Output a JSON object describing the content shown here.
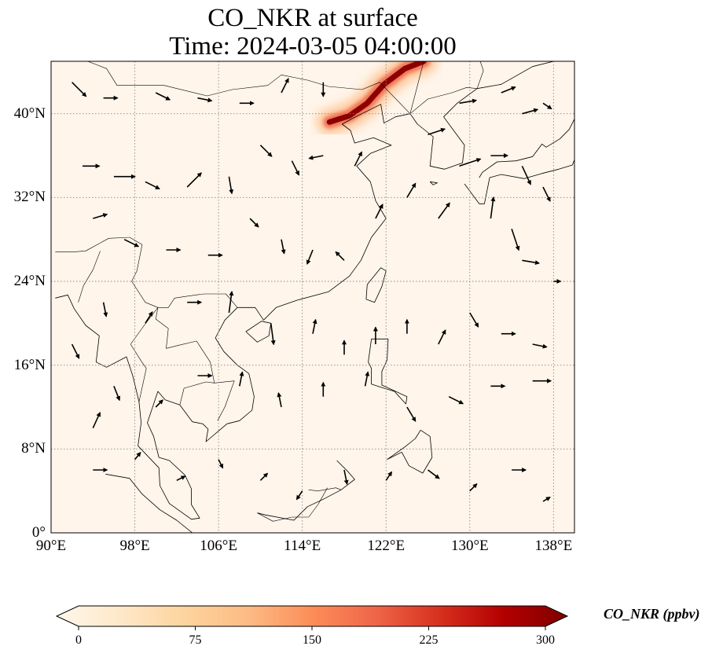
{
  "title": {
    "line1": "CO_NKR at surface",
    "line2": "Time: 2024-03-05 04:00:00"
  },
  "map": {
    "extent": {
      "lon": [
        90,
        140
      ],
      "lat": [
        0,
        45
      ]
    },
    "background_color": "#fff5ea",
    "gridlines": "dotted",
    "x_ticks": [
      "90°E",
      "98°E",
      "106°E",
      "114°E",
      "122°E",
      "130°E",
      "138°E"
    ],
    "y_ticks": [
      "0°",
      "8°N",
      "16°N",
      "24°N",
      "32°N",
      "40°N"
    ],
    "plume": {
      "description": "high CO concentration band over north-east China / Bohai region",
      "points": [
        [
          116.6,
          39.2
        ],
        [
          118.5,
          39.8
        ],
        [
          120.2,
          41.0
        ],
        [
          121.8,
          42.8
        ],
        [
          123.8,
          44.3
        ],
        [
          125.6,
          45.0
        ]
      ],
      "peak_value": 300
    },
    "wind_vectors": [
      [
        92,
        43,
        1,
        -1
      ],
      [
        95,
        41.5,
        1,
        0
      ],
      [
        100,
        42,
        1,
        -0.5
      ],
      [
        104,
        41.5,
        1,
        -0.2
      ],
      [
        108,
        41,
        1,
        0
      ],
      [
        112,
        42,
        0.5,
        1
      ],
      [
        116,
        43,
        0,
        -1
      ],
      [
        93,
        35,
        1.2,
        0
      ],
      [
        96,
        34,
        1.5,
        0
      ],
      [
        99,
        33.5,
        1,
        -0.5
      ],
      [
        103,
        33,
        1,
        1
      ],
      [
        107,
        34,
        0.2,
        -1.2
      ],
      [
        110,
        37,
        0.8,
        -0.8
      ],
      [
        113,
        35.5,
        0.5,
        -1
      ],
      [
        116,
        36,
        -1,
        -0.2
      ],
      [
        119,
        35,
        0.5,
        1
      ],
      [
        94,
        30,
        1,
        0.3
      ],
      [
        97,
        28,
        1,
        -0.5
      ],
      [
        101,
        27,
        1,
        0
      ],
      [
        105,
        26.5,
        1,
        0
      ],
      [
        109,
        30,
        0.6,
        -0.6
      ],
      [
        112,
        28,
        0.2,
        -1
      ],
      [
        115,
        27,
        -0.4,
        -1
      ],
      [
        118,
        26,
        -0.6,
        0.6
      ],
      [
        121,
        30,
        0.5,
        1
      ],
      [
        124,
        32,
        0.6,
        1
      ],
      [
        127,
        30,
        0.8,
        1.1
      ],
      [
        129,
        35,
        1.5,
        0.5
      ],
      [
        132,
        36,
        1.2,
        0
      ],
      [
        135,
        35,
        0.6,
        -1.3
      ],
      [
        137,
        33,
        0.5,
        -1
      ],
      [
        132,
        30,
        0.2,
        1.5
      ],
      [
        134,
        29,
        0.5,
        -1.5
      ],
      [
        135,
        26,
        1.2,
        -0.2
      ],
      [
        138,
        24,
        0.5,
        0
      ],
      [
        95,
        22,
        0.2,
        -1
      ],
      [
        99,
        20,
        0.5,
        0.8
      ],
      [
        103,
        22,
        1,
        0
      ],
      [
        107,
        21,
        0.2,
        1.5
      ],
      [
        111,
        20,
        0.2,
        -1.5
      ],
      [
        115,
        19,
        0.2,
        1
      ],
      [
        118,
        17,
        0,
        1
      ],
      [
        121,
        18,
        0,
        1.2
      ],
      [
        124,
        19,
        0,
        1
      ],
      [
        127,
        18,
        0.5,
        1
      ],
      [
        130,
        21,
        0.6,
        -1
      ],
      [
        133,
        19,
        1,
        0
      ],
      [
        136,
        18,
        1,
        -0.2
      ],
      [
        96,
        14,
        0.4,
        -1
      ],
      [
        100,
        12,
        0.5,
        0.5
      ],
      [
        104,
        15,
        1,
        0
      ],
      [
        108,
        14,
        0.2,
        1
      ],
      [
        112,
        12,
        -0.2,
        1
      ],
      [
        116,
        13,
        0,
        1
      ],
      [
        120,
        14,
        0.2,
        1
      ],
      [
        124,
        12,
        0.6,
        -1
      ],
      [
        128,
        13,
        1,
        -0.5
      ],
      [
        132,
        14,
        1,
        0
      ],
      [
        136,
        14.5,
        1.3,
        0
      ],
      [
        94,
        6,
        1,
        0
      ],
      [
        98,
        7,
        0.4,
        0.5
      ],
      [
        102,
        5,
        0.6,
        0.3
      ],
      [
        106,
        7,
        0.3,
        -0.6
      ],
      [
        110,
        5,
        0.5,
        0.5
      ],
      [
        114,
        4,
        -0.4,
        -0.6
      ],
      [
        118,
        6,
        0.2,
        -1
      ],
      [
        122,
        5,
        0.4,
        0.6
      ],
      [
        126,
        6,
        0.8,
        -0.6
      ],
      [
        130,
        4,
        0.5,
        0.5
      ],
      [
        134,
        6,
        1,
        0
      ],
      [
        137,
        3,
        0.5,
        0.3
      ],
      [
        92,
        18,
        0.5,
        -1
      ],
      [
        94,
        10,
        0.5,
        1.1
      ],
      [
        135,
        40,
        1.1,
        0.3
      ],
      [
        126,
        38,
        1.2,
        0.4
      ],
      [
        129,
        41,
        1.2,
        0.2
      ],
      [
        133,
        42,
        1,
        0.4
      ],
      [
        137,
        41,
        0.6,
        -0.4
      ]
    ],
    "coastlines": [
      [
        [
          107.8,
          21.5
        ],
        [
          109.5,
          21.5
        ],
        [
          110.3,
          20.3
        ],
        [
          111.5,
          21.5
        ],
        [
          113.5,
          22.2
        ],
        [
          116.5,
          23
        ],
        [
          118.5,
          24.5
        ],
        [
          119.6,
          26
        ],
        [
          120.6,
          28.2
        ],
        [
          122,
          30
        ],
        [
          121,
          31.7
        ],
        [
          120.5,
          33.5
        ],
        [
          119.2,
          35
        ],
        [
          120.5,
          36.2
        ],
        [
          122.5,
          37
        ],
        [
          120.8,
          37.7
        ],
        [
          119,
          37.2
        ],
        [
          118.6,
          38.4
        ],
        [
          117.8,
          39
        ],
        [
          118.9,
          39.6
        ],
        [
          121.5,
          40.9
        ],
        [
          121.8,
          39.1
        ],
        [
          122.9,
          39.7
        ],
        [
          124.3,
          40
        ]
      ],
      [
        [
          124.3,
          40
        ],
        [
          125,
          39
        ],
        [
          126.5,
          37.8
        ],
        [
          126.2,
          35
        ],
        [
          127.6,
          34.7
        ],
        [
          129.3,
          35.3
        ],
        [
          129.5,
          37
        ],
        [
          128.3,
          38.6
        ],
        [
          127.5,
          39.7
        ],
        [
          128.8,
          41
        ],
        [
          130.7,
          42.4
        ]
      ],
      [
        [
          130.7,
          42.4
        ],
        [
          133,
          42.8
        ],
        [
          136,
          44.5
        ],
        [
          138,
          45
        ]
      ],
      [
        [
          107.8,
          21.5
        ],
        [
          106.6,
          20.3
        ],
        [
          105.7,
          18.6
        ],
        [
          106.5,
          17.3
        ],
        [
          107.8,
          16
        ],
        [
          108.9,
          15.2
        ],
        [
          109.4,
          13
        ],
        [
          109.2,
          11.7
        ],
        [
          108,
          10.7
        ],
        [
          106.8,
          10.4
        ],
        [
          104.8,
          8.7
        ],
        [
          105,
          9.9
        ],
        [
          104.5,
          10.4
        ],
        [
          103.5,
          10.6
        ],
        [
          102.3,
          12.2
        ],
        [
          100.9,
          12.7
        ],
        [
          100.2,
          13.5
        ],
        [
          99.2,
          10.5
        ],
        [
          99.8,
          9.2
        ],
        [
          100.3,
          7.2
        ],
        [
          101.3,
          6.9
        ],
        [
          102.8,
          5.5
        ],
        [
          103.4,
          4.2
        ],
        [
          103.4,
          2.7
        ],
        [
          104.2,
          1.4
        ],
        [
          103.4,
          1.3
        ],
        [
          101.3,
          2.8
        ],
        [
          100.4,
          4.5
        ],
        [
          100.3,
          6.2
        ],
        [
          98.3,
          8.3
        ],
        [
          98.6,
          10.5
        ],
        [
          98.4,
          12.5
        ],
        [
          97.8,
          15
        ],
        [
          97.2,
          16.8
        ],
        [
          95.3,
          15.8
        ],
        [
          94.3,
          16.3
        ],
        [
          94.6,
          18.8
        ],
        [
          93.3,
          19.8
        ],
        [
          92.2,
          21.4
        ],
        [
          91.6,
          22.7
        ],
        [
          90.4,
          22.4
        ]
      ],
      [
        [
          120.1,
          22.3
        ],
        [
          120.9,
          22
        ],
        [
          121.6,
          23.5
        ],
        [
          122,
          25
        ],
        [
          121.5,
          25.3
        ],
        [
          120.2,
          23.7
        ],
        [
          120.1,
          22.3
        ]
      ],
      [
        [
          108.6,
          19.2
        ],
        [
          109.7,
          18.2
        ],
        [
          110.8,
          18.8
        ],
        [
          111,
          20
        ],
        [
          110.1,
          20.2
        ],
        [
          108.6,
          19.2
        ]
      ],
      [
        [
          120.6,
          18.5
        ],
        [
          122.2,
          18.5
        ],
        [
          122.1,
          16.5
        ],
        [
          121.6,
          15.4
        ],
        [
          121.6,
          14.1
        ],
        [
          124,
          13
        ],
        [
          123.9,
          12.3
        ],
        [
          122.8,
          13.5
        ],
        [
          121.8,
          13.8
        ],
        [
          120.6,
          14.2
        ],
        [
          120.6,
          15.7
        ],
        [
          120.3,
          16.3
        ],
        [
          120.6,
          18.5
        ]
      ],
      [
        [
          125.3,
          9.8
        ],
        [
          126.2,
          9.2
        ],
        [
          126.4,
          7.2
        ],
        [
          125.5,
          5.7
        ],
        [
          124.2,
          6.4
        ],
        [
          123.5,
          7.7
        ],
        [
          122.1,
          7
        ],
        [
          123.8,
          8.2
        ],
        [
          124.8,
          9
        ],
        [
          125.3,
          9.8
        ]
      ],
      [
        [
          117.3,
          6.9
        ],
        [
          118.3,
          5.9
        ],
        [
          119,
          5.1
        ],
        [
          118.1,
          4.4
        ],
        [
          117.7,
          4.1
        ]
      ],
      [
        [
          117.7,
          4.1
        ],
        [
          116,
          3.2
        ],
        [
          114.5,
          2.5
        ],
        [
          113.2,
          1.2
        ],
        [
          110.5,
          1.7
        ],
        [
          109.7,
          1.9
        ]
      ],
      [
        [
          95.2,
          5.6
        ],
        [
          97.5,
          5.2
        ],
        [
          98.7,
          3.7
        ],
        [
          100.4,
          2.2
        ],
        [
          102,
          1.2
        ],
        [
          103.5,
          0
        ]
      ],
      [
        [
          129.5,
          33.3
        ],
        [
          130.9,
          31.4
        ],
        [
          131.4,
          31.4
        ],
        [
          131.9,
          33.9
        ],
        [
          133,
          34.2
        ],
        [
          135.2,
          33.8
        ],
        [
          136.9,
          34.3
        ],
        [
          138.5,
          34.7
        ],
        [
          139.8,
          35.1
        ],
        [
          140,
          35.6
        ]
      ],
      [
        [
          130.9,
          33.9
        ],
        [
          131.2,
          34.4
        ],
        [
          132.6,
          35.4
        ],
        [
          134.4,
          35.5
        ],
        [
          136,
          35.9
        ],
        [
          136.9,
          37.1
        ],
        [
          137.3,
          36.8
        ],
        [
          138.6,
          37.6
        ],
        [
          139.5,
          38.5
        ],
        [
          140,
          39.5
        ]
      ],
      [
        [
          140,
          41.5
        ],
        [
          140.1,
          41.4
        ]
      ],
      [
        [
          126.2,
          33.5
        ],
        [
          126.9,
          33.4
        ],
        [
          126.5,
          33.2
        ],
        [
          126.2,
          33.5
        ]
      ]
    ],
    "borders": [
      [
        [
          97.5,
          28.2
        ],
        [
          98.7,
          27.5
        ],
        [
          98.2,
          25
        ],
        [
          97.7,
          24
        ],
        [
          99,
          22
        ],
        [
          100.2,
          21.5
        ],
        [
          101.2,
          21.5
        ],
        [
          101.8,
          22.4
        ],
        [
          103.1,
          22.6
        ],
        [
          104.6,
          22.8
        ],
        [
          106.7,
          22.8
        ],
        [
          107.8,
          21.5
        ]
      ],
      [
        [
          100.2,
          21.5
        ],
        [
          100,
          20.4
        ],
        [
          101.2,
          19.5
        ],
        [
          101,
          17.6
        ],
        [
          102.2,
          17.9
        ],
        [
          103.9,
          18.3
        ],
        [
          105.2,
          16.3
        ],
        [
          105.6,
          14.3
        ],
        [
          107.5,
          14.5
        ],
        [
          106.6,
          12
        ],
        [
          105.9,
          10.7
        ]
      ],
      [
        [
          102.3,
          12.2
        ],
        [
          102.7,
          13.8
        ],
        [
          104.8,
          14.4
        ],
        [
          105.6,
          14.3
        ]
      ],
      [
        [
          100.2,
          21.5
        ],
        [
          98.9,
          19.8
        ],
        [
          97.6,
          18
        ],
        [
          98.6,
          16.4
        ],
        [
          99.1,
          15.7
        ],
        [
          98.4,
          12.5
        ]
      ],
      [
        [
          97.5,
          28.2
        ],
        [
          95.5,
          28.1
        ],
        [
          93.3,
          26.9
        ],
        [
          92,
          26.8
        ],
        [
          90.4,
          26.8
        ]
      ],
      [
        [
          92.6,
          22
        ],
        [
          93.1,
          23.6
        ],
        [
          94,
          25.1
        ],
        [
          94.7,
          26.9
        ]
      ],
      [
        [
          124.3,
          40
        ],
        [
          126,
          41.4
        ],
        [
          128.3,
          42
        ],
        [
          129.7,
          42.5
        ],
        [
          130.7,
          42.4
        ]
      ],
      [
        [
          130.7,
          42.4
        ],
        [
          131.3,
          44.1
        ],
        [
          131,
          45
        ]
      ],
      [
        [
          124.3,
          40
        ],
        [
          121.4,
          43
        ],
        [
          119.7,
          42.3
        ],
        [
          116.5,
          42.6
        ],
        [
          114.5,
          43.2
        ],
        [
          112,
          43.7
        ],
        [
          110.7,
          42.7
        ],
        [
          107.3,
          42.3
        ],
        [
          104.9,
          41.7
        ],
        [
          100.8,
          42.7
        ],
        [
          96.3,
          42.7
        ],
        [
          95.3,
          44.3
        ],
        [
          93.5,
          45
        ]
      ],
      [
        [
          124.3,
          40
        ],
        [
          125.6,
          45
        ]
      ],
      [
        [
          114.6,
          4.1
        ],
        [
          115.5,
          4
        ],
        [
          117.2,
          4.3
        ],
        [
          117.7,
          4.1
        ]
      ],
      [
        [
          109.7,
          1.9
        ],
        [
          111.2,
          1.1
        ],
        [
          113,
          1.5
        ],
        [
          114.6,
          1.5
        ],
        [
          115.5,
          2.7
        ],
        [
          116.4,
          4.3
        ]
      ]
    ]
  },
  "colorbar": {
    "label": "CO_NKR (ppbv)",
    "ticks": [
      "0",
      "75",
      "150",
      "225",
      "300"
    ],
    "vmin": 0,
    "vmax": 300,
    "extend": "both",
    "colormap": "OrRd",
    "colors": [
      "#fff7ec",
      "#fee8c8",
      "#fdd49e",
      "#fdbb84",
      "#fc8d59",
      "#ef6548",
      "#d7301f",
      "#b30000",
      "#7f0000"
    ]
  }
}
